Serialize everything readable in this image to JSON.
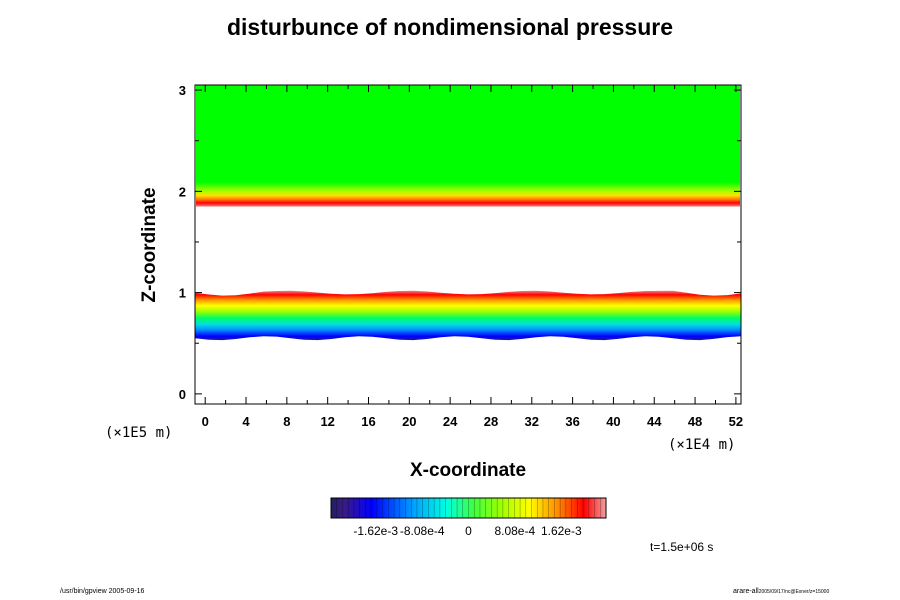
{
  "chart_data": {
    "type": "heatmap",
    "title": "disturbunce of nondimensional pressure",
    "xlabel": "X-coordinate",
    "ylabel": "Z-coordinate",
    "x_unit": "(×1E4 m)",
    "y_unit": "(×1E5 m)",
    "xlim": [
      -1,
      52.5
    ],
    "ylim": [
      -0.1,
      3.05
    ],
    "x_ticks": [
      0,
      4,
      8,
      12,
      16,
      20,
      24,
      28,
      32,
      36,
      40,
      44,
      48,
      52
    ],
    "y_ticks": [
      0,
      1,
      2,
      3
    ],
    "colorbar": {
      "range": [
        -0.0024,
        0.0024
      ],
      "tick_values": [
        -0.00162,
        -0.000808,
        0,
        0.000808,
        0.00162
      ],
      "tick_labels": [
        "-1.62e-3",
        "-8.08e-4",
        "0",
        "8.08e-4",
        "1.62e-3"
      ]
    },
    "bands": [
      {
        "z_bottom": 0.55,
        "z_top": 1.0,
        "value_bottom": -0.0022,
        "value_top": 0.0019,
        "note": "lower layer"
      },
      {
        "z_bottom": 1.85,
        "z_top": 1.92,
        "value": 0.0019,
        "note": "upper red edge"
      },
      {
        "z_bottom": 1.92,
        "z_top": 3.05,
        "value": 0.0,
        "note": "upper green layer"
      }
    ],
    "blank_regions": [
      [
        -0.1,
        0.55
      ],
      [
        1.0,
        1.85
      ]
    ]
  },
  "annotations": {
    "time": "t=1.5e+06 s",
    "footer_left": "/usr/bin/gpview 2005-09-16",
    "footer_right_main": "arare-all",
    "footer_right_small": "2005/09/17/nc@Exner/z=15000"
  },
  "colors": {
    "background": "#ffffff",
    "axis": "#000000"
  }
}
